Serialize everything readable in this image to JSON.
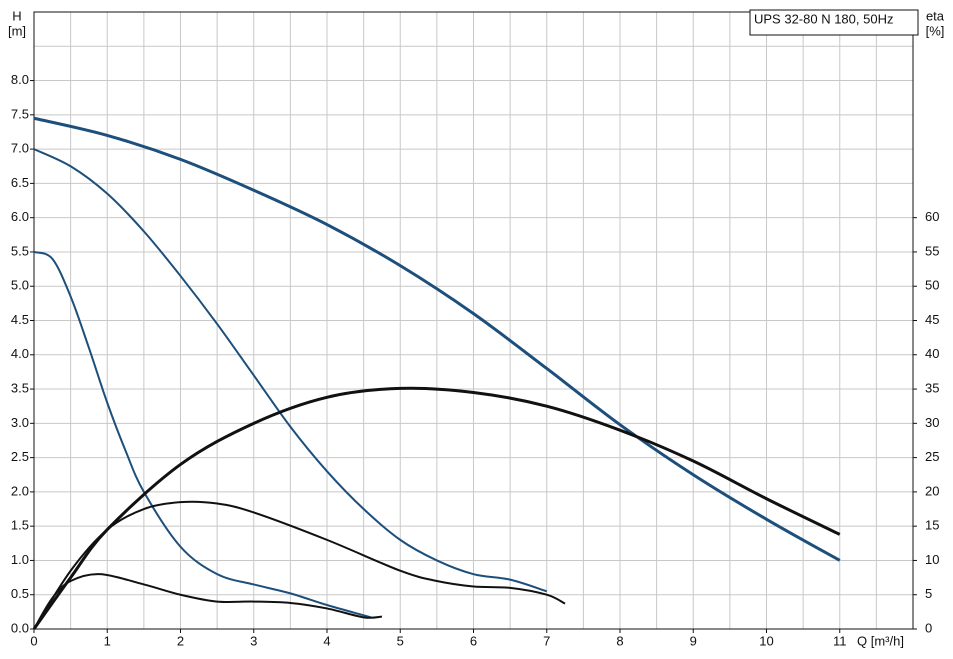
{
  "chart_data": {
    "type": "line",
    "legend_title": "UPS 32-80 N 180, 50Hz",
    "y_label": "H",
    "y_unit": "[m]",
    "y2_label": "eta",
    "y2_unit": "[%]",
    "x_label": "Q [m³/h]",
    "xlim": [
      0,
      12
    ],
    "xticks": [
      0,
      1,
      2,
      3,
      4,
      5,
      6,
      7,
      8,
      9,
      10,
      11
    ],
    "ylim": [
      0,
      9
    ],
    "yticks": [
      {
        "value": 0,
        "label": "0.0"
      },
      0.5,
      {
        "value": 1,
        "label": "1.0"
      },
      1.5,
      {
        "value": 2,
        "label": "2.0"
      },
      2.5,
      {
        "value": 3,
        "label": "3.0"
      },
      3.5,
      {
        "value": 4,
        "label": "4.0"
      },
      4.5,
      {
        "value": 5,
        "label": "5.0"
      },
      5.5,
      {
        "value": 6,
        "label": "6.0"
      },
      6.5,
      {
        "value": 7,
        "label": "7.0"
      },
      7.5,
      {
        "value": 8,
        "label": "8.0"
      }
    ],
    "y2lim": [
      0,
      90
    ],
    "y2ticks": [
      0,
      5,
      10,
      15,
      20,
      25,
      30,
      35,
      40,
      45,
      50,
      55,
      60
    ],
    "grid": true,
    "series": [
      {
        "color": "#1d4f7c",
        "width": 3,
        "x": [
          0,
          1,
          2,
          3,
          4,
          5,
          6,
          7,
          8,
          9,
          10,
          11
        ],
        "values": [
          7.45,
          7.2,
          6.85,
          6.4,
          5.9,
          5.3,
          4.6,
          3.8,
          2.98,
          2.25,
          1.6,
          1.0
        ]
      },
      {
        "color": "#1d4f7c",
        "width": 2,
        "x": [
          0,
          0.5,
          1,
          1.5,
          2,
          2.5,
          3,
          3.5,
          4,
          4.5,
          5,
          5.5,
          6,
          6.5,
          7
        ],
        "values": [
          7.0,
          6.75,
          6.35,
          5.8,
          5.15,
          4.45,
          3.7,
          2.95,
          2.3,
          1.75,
          1.3,
          1.0,
          0.8,
          0.72,
          0.55
        ]
      },
      {
        "color": "#1d4f7c",
        "width": 2,
        "x": [
          0,
          0.25,
          0.5,
          0.75,
          1,
          1.25,
          1.5,
          2,
          2.5,
          3,
          3.5,
          4,
          4.5,
          4.6
        ],
        "values": [
          5.5,
          5.4,
          4.85,
          4.1,
          3.3,
          2.6,
          2.0,
          1.2,
          0.8,
          0.65,
          0.52,
          0.35,
          0.2,
          0.17
        ]
      },
      {
        "color": "#111111",
        "width": 3,
        "axis": "y2",
        "x": [
          0,
          0.5,
          1,
          2,
          3,
          4,
          5,
          6,
          7,
          8,
          9,
          10,
          11
        ],
        "values": [
          0,
          7.5,
          14.5,
          24,
          30,
          33.8,
          35.1,
          34.5,
          32.5,
          29,
          24.5,
          19,
          13.8
        ]
      },
      {
        "color": "#111111",
        "width": 2,
        "axis": "y2",
        "x": [
          0,
          0.5,
          1,
          1.5,
          2,
          2.5,
          3,
          4,
          5,
          5.5,
          6,
          6.5,
          7,
          7.25
        ],
        "values": [
          0,
          8.5,
          14.5,
          17.5,
          18.5,
          18.3,
          17,
          13,
          8.5,
          7,
          6.2,
          6,
          5,
          3.7
        ]
      },
      {
        "color": "#111111",
        "width": 2,
        "axis": "y2",
        "x": [
          0,
          0.25,
          0.5,
          0.9,
          1.5,
          2,
          2.5,
          3,
          3.5,
          4,
          4.5,
          4.75
        ],
        "values": [
          0,
          4.5,
          7,
          8,
          6.5,
          5,
          4,
          4,
          3.8,
          3,
          1.7,
          1.8
        ]
      }
    ]
  }
}
